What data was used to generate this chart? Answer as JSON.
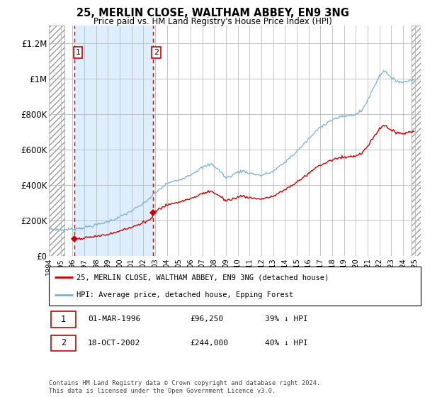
{
  "title": "25, MERLIN CLOSE, WALTHAM ABBEY, EN9 3NG",
  "subtitle": "Price paid vs. HM Land Registry's House Price Index (HPI)",
  "ylim": [
    0,
    1300000
  ],
  "yticks": [
    0,
    200000,
    400000,
    600000,
    800000,
    1000000,
    1200000
  ],
  "ytick_labels": [
    "£0",
    "£200K",
    "£400K",
    "£600K",
    "£800K",
    "£1M",
    "£1.2M"
  ],
  "sale1_year": 1996.17,
  "sale1_price": 96250,
  "sale2_year": 2002.8,
  "sale2_price": 244000,
  "hpi_color": "#7bafd4",
  "price_color": "#cc0000",
  "shaded_color": "#ddeeff",
  "grid_color": "#bbbbbb",
  "hatch_color": "#cccccc",
  "legend_label1": "25, MERLIN CLOSE, WALTHAM ABBEY, EN9 3NG (detached house)",
  "legend_label2": "HPI: Average price, detached house, Epping Forest",
  "footer": "Contains HM Land Registry data © Crown copyright and database right 2024.\nThis data is licensed under the Open Government Licence v3.0.",
  "xmin": 1994.0,
  "xmax": 2025.5,
  "hatch_left_end": 1995.3,
  "hatch_right_start": 2024.7
}
